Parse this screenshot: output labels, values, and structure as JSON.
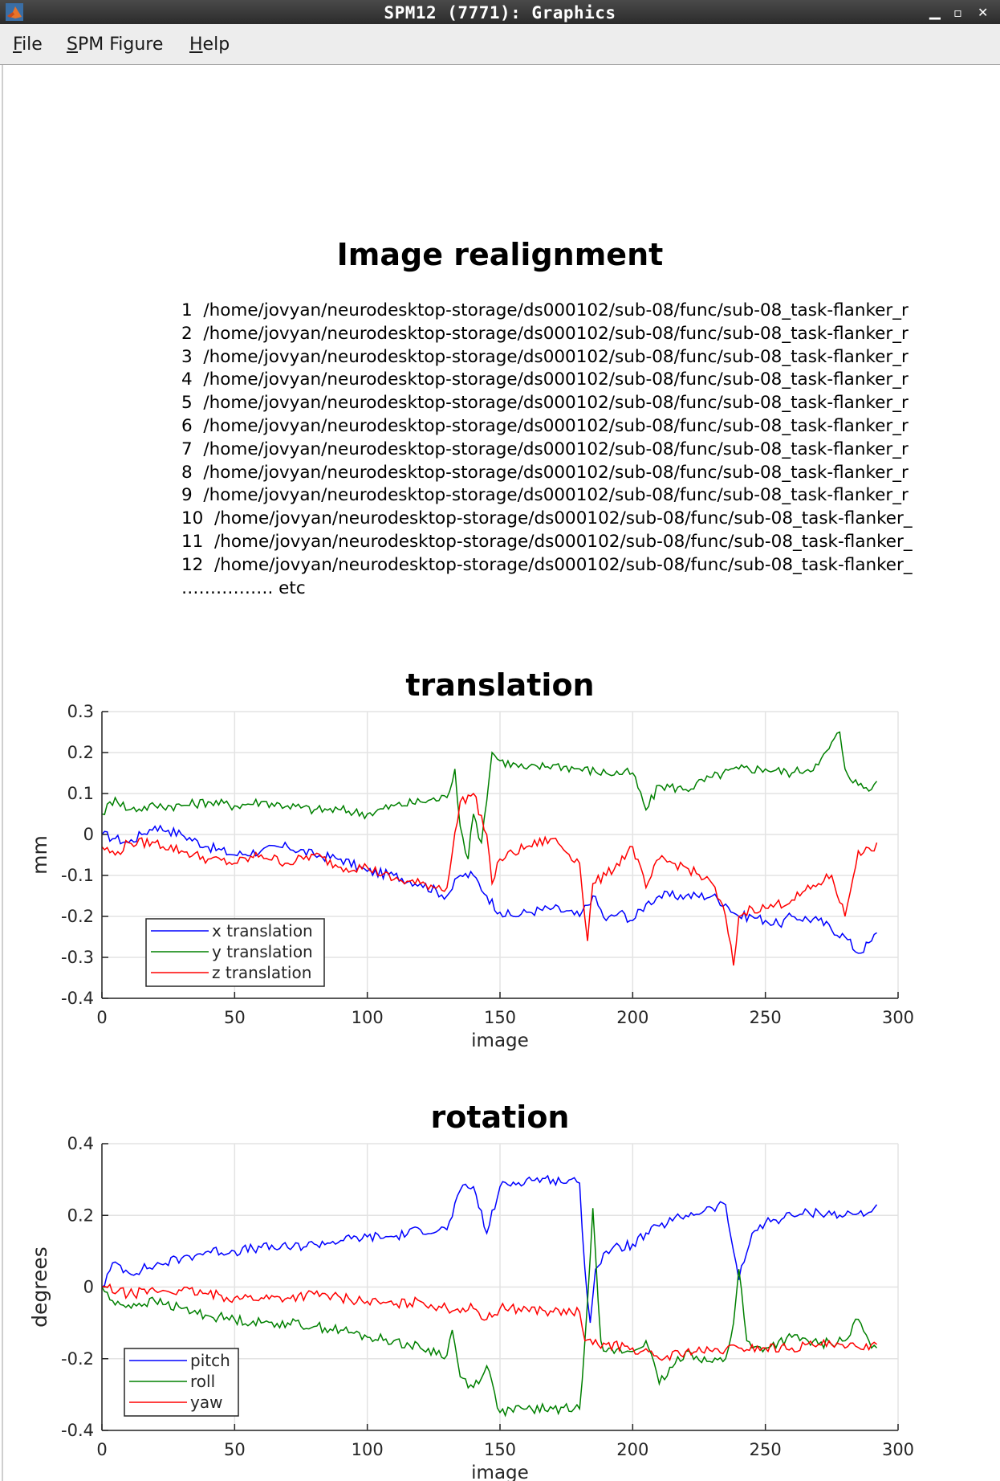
{
  "window": {
    "title": "SPM12 (7771): Graphics",
    "minimize": "▁",
    "maximize": "▫",
    "close": "✕"
  },
  "menu": {
    "items": [
      {
        "accel": "F",
        "rest": "ile"
      },
      {
        "accel": "S",
        "rest": "PM Figure"
      },
      {
        "accel": "H",
        "rest": "elp"
      }
    ]
  },
  "header": {
    "title": "Image realignment"
  },
  "file_list": {
    "rows": [
      {
        "num": "1",
        "path": "/home/jovyan/neurodesktop-storage/ds000102/sub-08/func/sub-08_task-flanker_r"
      },
      {
        "num": "2",
        "path": "/home/jovyan/neurodesktop-storage/ds000102/sub-08/func/sub-08_task-flanker_r"
      },
      {
        "num": "3",
        "path": "/home/jovyan/neurodesktop-storage/ds000102/sub-08/func/sub-08_task-flanker_r"
      },
      {
        "num": "4",
        "path": "/home/jovyan/neurodesktop-storage/ds000102/sub-08/func/sub-08_task-flanker_r"
      },
      {
        "num": "5",
        "path": "/home/jovyan/neurodesktop-storage/ds000102/sub-08/func/sub-08_task-flanker_r"
      },
      {
        "num": "6",
        "path": "/home/jovyan/neurodesktop-storage/ds000102/sub-08/func/sub-08_task-flanker_r"
      },
      {
        "num": "7",
        "path": "/home/jovyan/neurodesktop-storage/ds000102/sub-08/func/sub-08_task-flanker_r"
      },
      {
        "num": "8",
        "path": "/home/jovyan/neurodesktop-storage/ds000102/sub-08/func/sub-08_task-flanker_r"
      },
      {
        "num": "9",
        "path": "/home/jovyan/neurodesktop-storage/ds000102/sub-08/func/sub-08_task-flanker_r"
      },
      {
        "num": "10",
        "path": "/home/jovyan/neurodesktop-storage/ds000102/sub-08/func/sub-08_task-flanker_"
      },
      {
        "num": "11",
        "path": "/home/jovyan/neurodesktop-storage/ds000102/sub-08/func/sub-08_task-flanker_"
      },
      {
        "num": "12",
        "path": "/home/jovyan/neurodesktop-storage/ds000102/sub-08/func/sub-08_task-flanker_"
      }
    ],
    "etc": "……………. etc"
  },
  "chart_data": [
    {
      "type": "line",
      "title": "translation",
      "xlabel": "image",
      "ylabel": "mm",
      "xlim": [
        0,
        300
      ],
      "ylim": [
        -0.4,
        0.3
      ],
      "xticks": [
        "0",
        "50",
        "100",
        "150",
        "200",
        "250",
        "300"
      ],
      "yticks": [
        "0.3",
        "0.2",
        "0.1",
        "0",
        "-0.1",
        "-0.2",
        "-0.3",
        "-0.4"
      ],
      "grid": true,
      "legend_position": "bottom-left",
      "series": [
        {
          "name": "x translation",
          "color": "#0000ff",
          "x": [
            0,
            5,
            10,
            15,
            20,
            25,
            30,
            40,
            50,
            60,
            70,
            80,
            90,
            100,
            110,
            120,
            130,
            135,
            140,
            145,
            150,
            155,
            160,
            170,
            180,
            185,
            190,
            195,
            200,
            205,
            210,
            220,
            230,
            235,
            240,
            245,
            250,
            255,
            260,
            270,
            280,
            285,
            290,
            292
          ],
          "y": [
            0,
            -0.01,
            -0.02,
            0,
            0.02,
            0.01,
            0,
            -0.03,
            -0.05,
            -0.04,
            -0.03,
            -0.05,
            -0.06,
            -0.09,
            -0.1,
            -0.12,
            -0.15,
            -0.1,
            -0.1,
            -0.15,
            -0.19,
            -0.2,
            -0.19,
            -0.18,
            -0.2,
            -0.15,
            -0.21,
            -0.19,
            -0.21,
            -0.17,
            -0.15,
            -0.15,
            -0.15,
            -0.17,
            -0.2,
            -0.2,
            -0.21,
            -0.22,
            -0.2,
            -0.21,
            -0.25,
            -0.29,
            -0.26,
            -0.24
          ]
        },
        {
          "name": "y translation",
          "color": "#008000",
          "x": [
            0,
            5,
            10,
            20,
            30,
            40,
            50,
            60,
            70,
            80,
            90,
            100,
            110,
            120,
            130,
            133,
            135,
            138,
            140,
            143,
            147,
            150,
            160,
            170,
            180,
            190,
            200,
            205,
            210,
            220,
            230,
            240,
            250,
            260,
            270,
            278,
            280,
            285,
            290,
            292
          ],
          "y": [
            0.05,
            0.09,
            0.06,
            0.07,
            0.07,
            0.08,
            0.07,
            0.08,
            0.07,
            0.06,
            0.06,
            0.05,
            0.07,
            0.08,
            0.09,
            0.16,
            0.02,
            -0.06,
            0.05,
            -0.02,
            0.2,
            0.18,
            0.16,
            0.17,
            0.16,
            0.15,
            0.15,
            0.06,
            0.12,
            0.11,
            0.14,
            0.16,
            0.16,
            0.15,
            0.17,
            0.25,
            0.16,
            0.12,
            0.11,
            0.13
          ]
        },
        {
          "name": "z translation",
          "color": "#ff0000",
          "x": [
            0,
            5,
            10,
            20,
            30,
            40,
            50,
            60,
            70,
            80,
            90,
            100,
            110,
            120,
            130,
            135,
            140,
            145,
            147,
            150,
            160,
            170,
            180,
            183,
            185,
            190,
            200,
            205,
            210,
            220,
            230,
            235,
            238,
            240,
            245,
            250,
            260,
            270,
            275,
            280,
            285,
            290,
            292
          ],
          "y": [
            -0.03,
            -0.05,
            -0.02,
            -0.02,
            -0.04,
            -0.06,
            -0.07,
            -0.05,
            -0.07,
            -0.05,
            -0.08,
            -0.08,
            -0.11,
            -0.12,
            -0.13,
            0.08,
            0.1,
            0,
            -0.12,
            -0.06,
            -0.03,
            -0.01,
            -0.07,
            -0.26,
            -0.12,
            -0.1,
            -0.03,
            -0.13,
            -0.06,
            -0.08,
            -0.12,
            -0.2,
            -0.32,
            -0.2,
            -0.18,
            -0.18,
            -0.16,
            -0.12,
            -0.1,
            -0.2,
            -0.04,
            -0.04,
            -0.02
          ]
        }
      ]
    },
    {
      "type": "line",
      "title": "rotation",
      "xlabel": "image",
      "ylabel": "degrees",
      "xlim": [
        0,
        300
      ],
      "ylim": [
        -0.4,
        0.4
      ],
      "xticks": [
        "0",
        "50",
        "100",
        "150",
        "200",
        "250",
        "300"
      ],
      "yticks": [
        "0.4",
        "0.2",
        "0",
        "-0.2",
        "-0.4"
      ],
      "grid": true,
      "legend_position": "bottom-left",
      "series": [
        {
          "name": "pitch",
          "color": "#0000ff",
          "x": [
            0,
            5,
            10,
            20,
            30,
            40,
            50,
            60,
            70,
            80,
            90,
            100,
            110,
            120,
            130,
            135,
            140,
            145,
            150,
            160,
            170,
            180,
            182,
            184,
            186,
            190,
            200,
            210,
            220,
            230,
            235,
            238,
            240,
            245,
            250,
            260,
            270,
            280,
            290,
            292
          ],
          "y": [
            0,
            0.07,
            0.04,
            0.06,
            0.08,
            0.1,
            0.1,
            0.11,
            0.11,
            0.12,
            0.13,
            0.14,
            0.14,
            0.16,
            0.16,
            0.27,
            0.28,
            0.15,
            0.28,
            0.3,
            0.3,
            0.29,
            0.05,
            -0.1,
            0.05,
            0.1,
            0.12,
            0.17,
            0.2,
            0.22,
            0.23,
            0.1,
            0.02,
            0.15,
            0.18,
            0.2,
            0.21,
            0.2,
            0.21,
            0.23
          ]
        },
        {
          "name": "roll",
          "color": "#008000",
          "x": [
            0,
            5,
            10,
            20,
            30,
            40,
            50,
            60,
            70,
            80,
            90,
            100,
            110,
            120,
            130,
            132,
            135,
            140,
            145,
            150,
            160,
            170,
            180,
            182,
            185,
            188,
            190,
            200,
            205,
            210,
            220,
            230,
            235,
            238,
            240,
            243,
            245,
            250,
            260,
            270,
            280,
            285,
            290,
            292
          ],
          "y": [
            0,
            -0.05,
            -0.05,
            -0.04,
            -0.06,
            -0.08,
            -0.09,
            -0.1,
            -0.1,
            -0.11,
            -0.12,
            -0.14,
            -0.15,
            -0.17,
            -0.19,
            -0.12,
            -0.25,
            -0.28,
            -0.22,
            -0.35,
            -0.34,
            -0.34,
            -0.34,
            -0.15,
            0.22,
            -0.15,
            -0.18,
            -0.18,
            -0.15,
            -0.27,
            -0.18,
            -0.21,
            -0.2,
            -0.1,
            0.05,
            -0.15,
            -0.17,
            -0.17,
            -0.14,
            -0.16,
            -0.15,
            -0.09,
            -0.17,
            -0.17
          ]
        },
        {
          "name": "yaw",
          "color": "#ff0000",
          "x": [
            0,
            10,
            20,
            30,
            40,
            50,
            60,
            70,
            80,
            90,
            100,
            110,
            120,
            130,
            140,
            145,
            150,
            160,
            170,
            180,
            182,
            185,
            190,
            200,
            210,
            220,
            230,
            240,
            250,
            260,
            270,
            280,
            290,
            292
          ],
          "y": [
            0,
            -0.02,
            -0.01,
            -0.01,
            -0.02,
            -0.03,
            -0.03,
            -0.03,
            -0.02,
            -0.03,
            -0.04,
            -0.05,
            -0.04,
            -0.06,
            -0.06,
            -0.09,
            -0.06,
            -0.06,
            -0.07,
            -0.07,
            -0.15,
            -0.16,
            -0.16,
            -0.17,
            -0.2,
            -0.18,
            -0.18,
            -0.17,
            -0.17,
            -0.17,
            -0.16,
            -0.17,
            -0.16,
            -0.16
          ]
        }
      ]
    }
  ]
}
